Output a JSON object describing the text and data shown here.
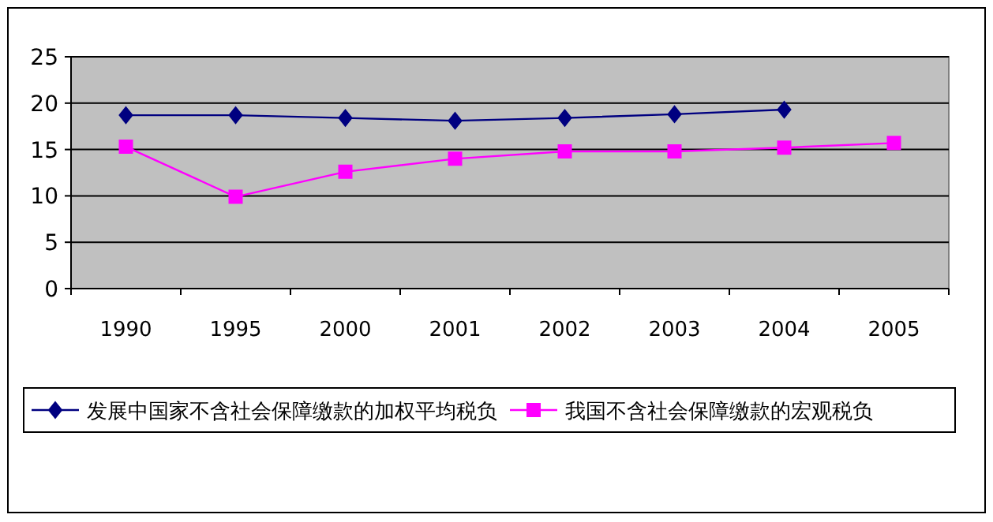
{
  "chart_data": {
    "type": "line",
    "categories": [
      "1990",
      "1995",
      "2000",
      "2001",
      "2002",
      "2003",
      "2004",
      "2005"
    ],
    "series": [
      {
        "name": "发展中国家不含社会保障缴款的加权平均税负",
        "color": "#000080",
        "marker": "diamond",
        "values": [
          18.7,
          18.7,
          18.4,
          18.1,
          18.4,
          18.8,
          19.3,
          null
        ]
      },
      {
        "name": "我国不含社会保障缴款的宏观税负",
        "color": "#ff00ff",
        "marker": "square",
        "values": [
          15.3,
          9.9,
          12.6,
          14.0,
          14.8,
          14.8,
          15.2,
          15.7
        ]
      }
    ],
    "ylim": [
      0,
      25
    ],
    "yticks": [
      0,
      5,
      10,
      15,
      20,
      25
    ],
    "grid": "y",
    "legend": "bottom"
  }
}
